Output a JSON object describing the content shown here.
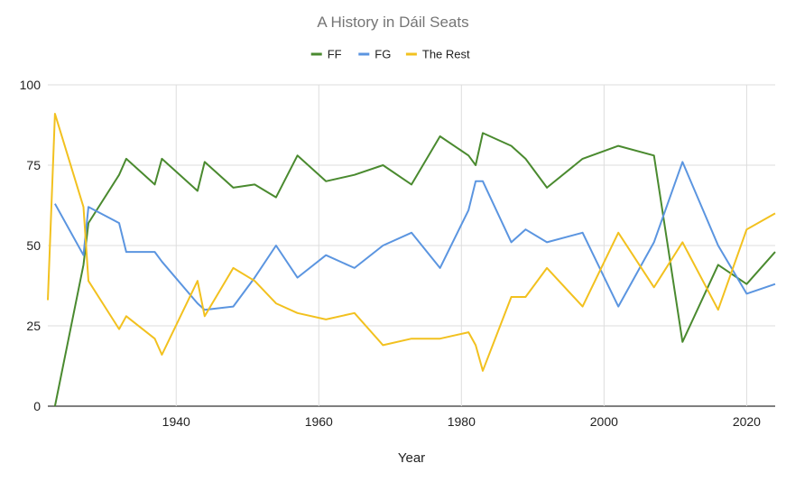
{
  "chart_data": {
    "type": "line",
    "title": "A History in Dáil Seats",
    "xlabel": "Year",
    "ylabel": "",
    "xlim": [
      1922,
      2024
    ],
    "ylim": [
      0,
      100
    ],
    "yticks": [
      0,
      25,
      50,
      75,
      100
    ],
    "xticks": [
      1940,
      1960,
      1980,
      2000,
      2020
    ],
    "grid": true,
    "legend_position": "top-center",
    "colors": {
      "FF": "#4a8a2f",
      "FG": "#5b95e0",
      "The Rest": "#f2c11f"
    },
    "series": [
      {
        "name": "FF",
        "color": "#4a8a2f",
        "points": [
          [
            1923,
            0
          ],
          [
            1927,
            44
          ],
          [
            1927.7,
            57
          ],
          [
            1932,
            72
          ],
          [
            1933,
            77
          ],
          [
            1937,
            69
          ],
          [
            1938,
            77
          ],
          [
            1943,
            67
          ],
          [
            1944,
            76
          ],
          [
            1948,
            68
          ],
          [
            1951,
            69
          ],
          [
            1954,
            65
          ],
          [
            1957,
            78
          ],
          [
            1961,
            70
          ],
          [
            1965,
            72
          ],
          [
            1969,
            75
          ],
          [
            1973,
            69
          ],
          [
            1977,
            84
          ],
          [
            1981,
            78
          ],
          [
            1982,
            75
          ],
          [
            1983,
            85
          ],
          [
            1987,
            81
          ],
          [
            1989,
            77
          ],
          [
            1992,
            68
          ],
          [
            1997,
            77
          ],
          [
            2002,
            81
          ],
          [
            2007,
            78
          ],
          [
            2011,
            20
          ],
          [
            2016,
            44
          ],
          [
            2020,
            38
          ],
          [
            2024,
            48
          ]
        ]
      },
      {
        "name": "FG",
        "color": "#5b95e0",
        "points": [
          [
            1923,
            63
          ],
          [
            1927,
            47
          ],
          [
            1927.7,
            62
          ],
          [
            1932,
            57
          ],
          [
            1933,
            48
          ],
          [
            1937,
            48
          ],
          [
            1938,
            45
          ],
          [
            1943,
            32
          ],
          [
            1944,
            30
          ],
          [
            1948,
            31
          ],
          [
            1951,
            40
          ],
          [
            1954,
            50
          ],
          [
            1957,
            40
          ],
          [
            1961,
            47
          ],
          [
            1965,
            43
          ],
          [
            1969,
            50
          ],
          [
            1973,
            54
          ],
          [
            1977,
            43
          ],
          [
            1981,
            61
          ],
          [
            1982,
            70
          ],
          [
            1983,
            70
          ],
          [
            1987,
            51
          ],
          [
            1989,
            55
          ],
          [
            1992,
            51
          ],
          [
            1997,
            54
          ],
          [
            2002,
            31
          ],
          [
            2007,
            51
          ],
          [
            2011,
            76
          ],
          [
            2016,
            50
          ],
          [
            2020,
            35
          ],
          [
            2024,
            38
          ]
        ]
      },
      {
        "name": "The Rest",
        "color": "#f2c11f",
        "points": [
          [
            1922,
            33
          ],
          [
            1923,
            91
          ],
          [
            1927,
            62
          ],
          [
            1927.7,
            39
          ],
          [
            1932,
            24
          ],
          [
            1933,
            28
          ],
          [
            1937,
            21
          ],
          [
            1938,
            16
          ],
          [
            1943,
            39
          ],
          [
            1944,
            28
          ],
          [
            1948,
            43
          ],
          [
            1951,
            39
          ],
          [
            1954,
            32
          ],
          [
            1957,
            29
          ],
          [
            1961,
            27
          ],
          [
            1965,
            29
          ],
          [
            1969,
            19
          ],
          [
            1973,
            21
          ],
          [
            1977,
            21
          ],
          [
            1981,
            23
          ],
          [
            1982,
            19
          ],
          [
            1983,
            11
          ],
          [
            1987,
            34
          ],
          [
            1989,
            34
          ],
          [
            1992,
            43
          ],
          [
            1997,
            31
          ],
          [
            2002,
            54
          ],
          [
            2007,
            37
          ],
          [
            2011,
            51
          ],
          [
            2016,
            30
          ],
          [
            2020,
            55
          ],
          [
            2024,
            60
          ]
        ]
      }
    ]
  }
}
